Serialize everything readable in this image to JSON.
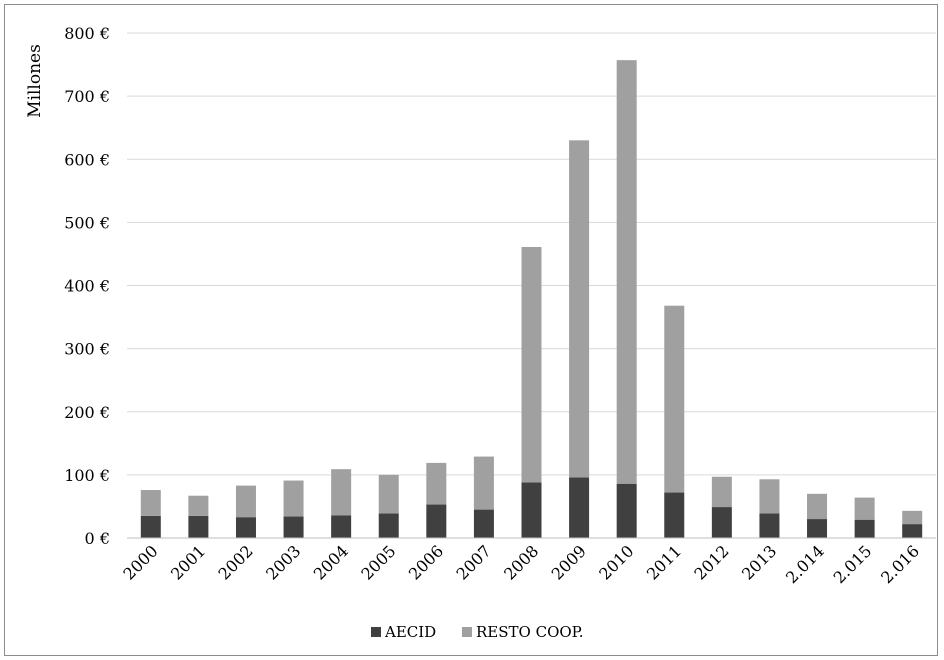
{
  "chart_data": {
    "type": "bar",
    "stacked": true,
    "ylabel": "Millones",
    "xlabel": "",
    "ylim": [
      0,
      800
    ],
    "y_ticks": [
      0,
      100,
      200,
      300,
      400,
      500,
      600,
      700,
      800
    ],
    "y_tick_suffix": " €",
    "grid": true,
    "legend_position": "bottom-center",
    "categories": [
      "2000",
      "2001",
      "2002",
      "2003",
      "2004",
      "2005",
      "2006",
      "2007",
      "2008",
      "2009",
      "2010",
      "2011",
      "2012",
      "2013",
      "2.014",
      "2.015",
      "2.016"
    ],
    "series": [
      {
        "name": "AECID",
        "color": "#404040",
        "values": [
          35,
          35,
          33,
          34,
          36,
          39,
          53,
          45,
          88,
          96,
          86,
          72,
          49,
          39,
          30,
          29,
          22
        ]
      },
      {
        "name": "RESTO COOP.",
        "color": "#a0a0a0",
        "values": [
          41,
          32,
          50,
          57,
          73,
          61,
          66,
          84,
          373,
          534,
          671,
          296,
          48,
          54,
          40,
          35,
          21
        ]
      }
    ]
  }
}
